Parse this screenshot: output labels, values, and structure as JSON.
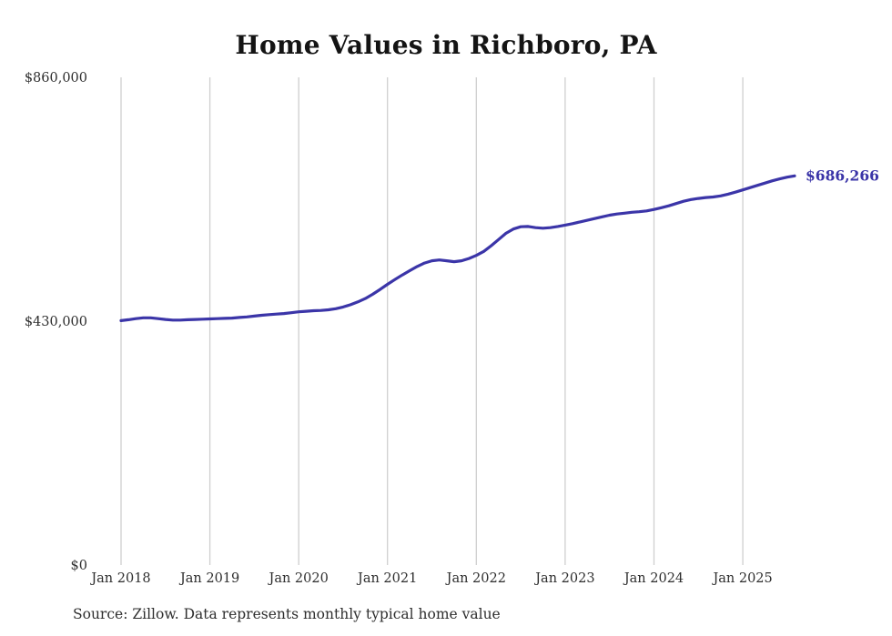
{
  "title": "Home Values in Richboro, PA",
  "source_note": "Source: Zillow. Data represents monthly typical home value",
  "end_label": "$686,266",
  "colors": {
    "line": "#3b35a8",
    "grid": "#cfcfcf",
    "title_text": "#141414",
    "tick_text": "#2e2e2e",
    "source_text": "#2e2e2e"
  },
  "chart_data": {
    "type": "line",
    "title": "Home Values in Richboro, PA",
    "xlabel": "",
    "ylabel": "",
    "ylim": [
      0,
      860000
    ],
    "grid": "vertical-only",
    "legend": "none",
    "y_ticks": [
      {
        "value": 860000,
        "label": "$860,000"
      },
      {
        "value": 430000,
        "label": "$430,000"
      },
      {
        "value": 0,
        "label": "$0"
      }
    ],
    "x_ticks": [
      {
        "month": "2018-01",
        "label": "Jan 2018"
      },
      {
        "month": "2019-01",
        "label": "Jan 2019"
      },
      {
        "month": "2020-01",
        "label": "Jan 2020"
      },
      {
        "month": "2021-01",
        "label": "Jan 2021"
      },
      {
        "month": "2022-01",
        "label": "Jan 2022"
      },
      {
        "month": "2023-01",
        "label": "Jan 2023"
      },
      {
        "month": "2024-01",
        "label": "Jan 2024"
      },
      {
        "month": "2025-01",
        "label": "Jan 2025"
      }
    ],
    "months": [
      "2018-01",
      "2018-02",
      "2018-03",
      "2018-04",
      "2018-05",
      "2018-06",
      "2018-07",
      "2018-08",
      "2018-09",
      "2018-10",
      "2018-11",
      "2018-12",
      "2019-01",
      "2019-02",
      "2019-03",
      "2019-04",
      "2019-05",
      "2019-06",
      "2019-07",
      "2019-08",
      "2019-09",
      "2019-10",
      "2019-11",
      "2019-12",
      "2020-01",
      "2020-02",
      "2020-03",
      "2020-04",
      "2020-05",
      "2020-06",
      "2020-07",
      "2020-08",
      "2020-09",
      "2020-10",
      "2020-11",
      "2020-12",
      "2021-01",
      "2021-02",
      "2021-03",
      "2021-04",
      "2021-05",
      "2021-06",
      "2021-07",
      "2021-08",
      "2021-09",
      "2021-10",
      "2021-11",
      "2021-12",
      "2022-01",
      "2022-02",
      "2022-03",
      "2022-04",
      "2022-05",
      "2022-06",
      "2022-07",
      "2022-08",
      "2022-09",
      "2022-10",
      "2022-11",
      "2022-12",
      "2023-01",
      "2023-02",
      "2023-03",
      "2023-04",
      "2023-05",
      "2023-06",
      "2023-07",
      "2023-08",
      "2023-09",
      "2023-10",
      "2023-11",
      "2023-12",
      "2024-01",
      "2024-02",
      "2024-03",
      "2024-04",
      "2024-05",
      "2024-06",
      "2024-07",
      "2024-08",
      "2024-09",
      "2024-10",
      "2024-11",
      "2024-12",
      "2025-01",
      "2025-02",
      "2025-03",
      "2025-04",
      "2025-05",
      "2025-06",
      "2025-07",
      "2025-08"
    ],
    "series": [
      {
        "name": "Typical home value",
        "values": [
          431000,
          432500,
          434500,
          436000,
          436000,
          434500,
          433000,
          432000,
          432000,
          432500,
          433000,
          433500,
          434000,
          434500,
          435000,
          435500,
          436500,
          437500,
          439000,
          440500,
          441500,
          442500,
          443500,
          445000,
          446500,
          447500,
          448500,
          449000,
          450000,
          452000,
          455000,
          459000,
          464000,
          470000,
          477500,
          486000,
          495000,
          503500,
          511500,
          519000,
          526500,
          532500,
          536500,
          538000,
          536500,
          535000,
          536500,
          540500,
          546000,
          553000,
          563000,
          574000,
          585000,
          592500,
          596500,
          597000,
          595000,
          594000,
          595000,
          597000,
          599500,
          602000,
          605000,
          608000,
          611000,
          614000,
          617000,
          619000,
          620500,
          622000,
          623000,
          624500,
          627000,
          630000,
          633500,
          637500,
          641500,
          644500,
          646500,
          648000,
          649000,
          651000,
          654000,
          657500,
          661500,
          665500,
          669500,
          673500,
          677500,
          681000,
          684000,
          686266
        ]
      }
    ],
    "final_value": 686266,
    "final_value_label": "$686,266"
  }
}
